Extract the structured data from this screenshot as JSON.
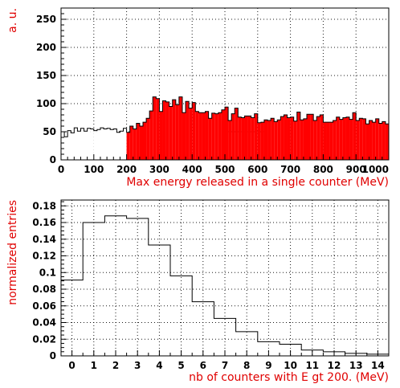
{
  "chart_data": [
    {
      "type": "bar",
      "histogram": true,
      "xlabel": "Max energy released in a single counter (MeV)",
      "ylabel": "a. u.",
      "xlim": [
        0,
        1000
      ],
      "ylim": [
        0,
        270
      ],
      "xticks": [
        0,
        100,
        200,
        300,
        400,
        500,
        600,
        700,
        800,
        900,
        1000
      ],
      "yticks": [
        0,
        50,
        100,
        150,
        200,
        250
      ],
      "grid": true,
      "bin_width": 10,
      "cut_value": 200,
      "colors": {
        "below_cut": "#ffffff",
        "above_cut": "#ff0000",
        "outline": "#000000"
      },
      "values": [
        50,
        41,
        52,
        48,
        57,
        51,
        56,
        51,
        56,
        55,
        52,
        54,
        57,
        55,
        56,
        54,
        55,
        49,
        51,
        56,
        49,
        60,
        55,
        65,
        60,
        67,
        74,
        87,
        112,
        109,
        86,
        105,
        103,
        95,
        107,
        98,
        112,
        84,
        104,
        92,
        102,
        86,
        84,
        84,
        86,
        74,
        83,
        82,
        84,
        89,
        94,
        70,
        82,
        92,
        76,
        75,
        78,
        78,
        75,
        82,
        66,
        67,
        71,
        70,
        74,
        68,
        71,
        77,
        80,
        75,
        76,
        69,
        85,
        71,
        73,
        81,
        81,
        70,
        77,
        80,
        67,
        67,
        67,
        70,
        76,
        72,
        75,
        76,
        72,
        84,
        70,
        74,
        73,
        64,
        70,
        67,
        73,
        65,
        68,
        64
      ]
    },
    {
      "type": "bar",
      "histogram": true,
      "xlabel": "nb of counters with E gt 200. (MeV)",
      "ylabel": "normalized entries",
      "xlim": [
        -0.5,
        14.5
      ],
      "ylim": [
        0,
        0.187
      ],
      "xticks": [
        0,
        1,
        2,
        3,
        4,
        5,
        6,
        7,
        8,
        9,
        10,
        11,
        12,
        13,
        14
      ],
      "yticks": [
        0,
        0.02,
        0.04,
        0.06,
        0.08,
        0.1,
        0.12,
        0.14,
        0.16,
        0.18
      ],
      "ytick_labels": [
        "0",
        "0.02",
        "0.04",
        "0.06",
        "0.08",
        "0.1",
        "0.12",
        "0.14",
        "0.16",
        "0.18"
      ],
      "grid": true,
      "categories": [
        0,
        1,
        2,
        3,
        4,
        5,
        6,
        7,
        8,
        9,
        10,
        11,
        12,
        13,
        14
      ],
      "values": [
        0.091,
        0.16,
        0.168,
        0.165,
        0.133,
        0.096,
        0.065,
        0.045,
        0.029,
        0.017,
        0.014,
        0.007,
        0.005,
        0.003,
        0.002
      ]
    }
  ]
}
